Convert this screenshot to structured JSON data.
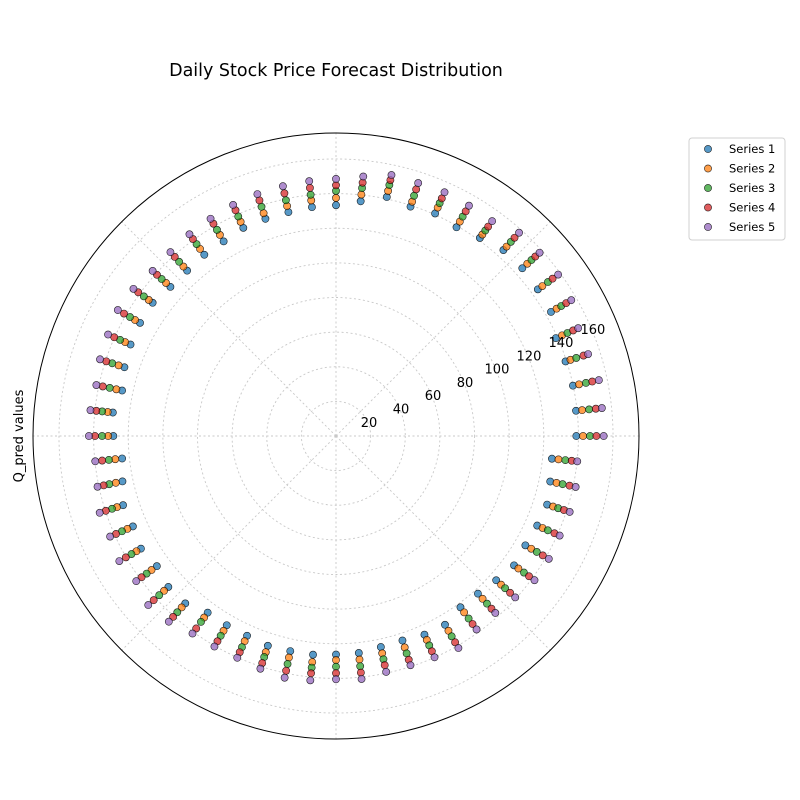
{
  "chart_data": {
    "type": "scatter",
    "projection": "polar",
    "title": "Daily Stock Price Forecast Distribution",
    "ylabel": "Q_pred values",
    "rlim": [
      0,
      175
    ],
    "r_ticks": [
      20,
      40,
      60,
      80,
      100,
      120,
      140,
      160
    ],
    "r_tick_angle_deg": 22.5,
    "theta_grid_deg": [
      0,
      45,
      90,
      135,
      180,
      225,
      270,
      315
    ],
    "theta_direction": "counterclockwise",
    "theta_zero": "east",
    "grid": true,
    "legend_position": "upper-right outside",
    "marker_alpha": 0.75,
    "theta_start_deg": 0,
    "theta_step_deg": 6,
    "point_count": 60,
    "series": [
      {
        "name": "Series 1",
        "color": "#1f77b4",
        "r": [
          138.8,
          139.4,
          139.9,
          139.4,
          139.0,
          143.4,
          144.1,
          144.8,
          144.5,
          141.4,
          139.2,
          140.7,
          139.3,
          141.1,
          136.3,
          133.3,
          132.9,
          132.2,
          131.9,
          131.6,
          129.8,
          129.4,
          128.5,
          128.7,
          130.9,
          130.7,
          129.9,
          128.5,
          126.3,
          129.6,
          128.6,
          124.2,
          126.1,
          129.3,
          128.4,
          130.1,
          127.9,
          130.3,
          130.1,
          126.1,
          126.2,
          126.3,
          127.4,
          127.0,
          127.0,
          126.2,
          126.0,
          124.6,
          124.2,
          125.6,
          125.9,
          122.3,
          122.5,
          124.5,
          127.1,
          126.3,
          127.2,
          128.2,
          126.5,
          125.4
        ]
      },
      {
        "name": "Series 2",
        "color": "#ff7f0e",
        "r": [
          142.7,
          142.9,
          143.5,
          142.4,
          142.9,
          147.1,
          147.3,
          148.7,
          147.2,
          143.8,
          143.0,
          144.4,
          142.3,
          144.7,
          140.2,
          137.5,
          136.8,
          135.8,
          135.3,
          135.4,
          134.1,
          133.6,
          131.7,
          132.1,
          133.7,
          134.0,
          133.3,
          132.0,
          129.7,
          132.6,
          131.6,
          128.2,
          130.0,
          133.0,
          131.9,
          133.1,
          131.7,
          133.6,
          133.2,
          129.6,
          129.9,
          129.7,
          131.3,
          130.8,
          131.3,
          129.4,
          129.8,
          128.3,
          128.4,
          128.9,
          129.9,
          125.9,
          126.5,
          128.3,
          130.2,
          130.2,
          130.6,
          131.8,
          130.2,
          129.2
        ]
      },
      {
        "name": "Series 3",
        "color": "#2ca02c",
        "r": [
          146.7,
          147.0,
          147.6,
          145.9,
          146.3,
          150.2,
          151.3,
          151.9,
          150.9,
          146.7,
          146.3,
          147.2,
          145.9,
          148.2,
          144.0,
          141.6,
          140.1,
          139.2,
          139.2,
          138.8,
          137.5,
          137.0,
          135.4,
          135.5,
          137.2,
          137.4,
          136.5,
          135.9,
          133.6,
          135.8,
          135.1,
          131.9,
          133.9,
          136.0,
          135.3,
          136.4,
          135.2,
          137.4,
          137.0,
          132.7,
          133.2,
          133.5,
          134.2,
          134.6,
          134.5,
          133.2,
          133.7,
          131.8,
          132.0,
          132.4,
          133.6,
          130.3,
          130.3,
          131.4,
          134.2,
          133.9,
          133.9,
          134.9,
          133.8,
          133.2
        ]
      },
      {
        "name": "Series 4",
        "color": "#d62728",
        "r": [
          150.4,
          150.9,
          151.3,
          150.3,
          149.9,
          153.5,
          154.6,
          154.9,
          154.1,
          149.5,
          149.8,
          150.2,
          149.8,
          151.1,
          147.1,
          144.8,
          144.1,
          143.3,
          143.1,
          142.7,
          141.6,
          140.6,
          139.2,
          139.2,
          141.2,
          141.4,
          140.2,
          139.5,
          137.7,
          139.2,
          139.2,
          135.8,
          137.2,
          139.8,
          139.1,
          140.2,
          138.8,
          141.7,
          140.6,
          137.4,
          136.9,
          136.7,
          137.9,
          138.6,
          137.8,
          137.0,
          137.4,
          135.3,
          135.9,
          136.1,
          137.6,
          134.2,
          134.2,
          135.3,
          137.8,
          137.9,
          138.1,
          138.4,
          137.9,
          136.9
        ]
      },
      {
        "name": "Series 5",
        "color": "#9467bd",
        "r": [
          154.6,
          154.4,
          155.2,
          153.1,
          153.1,
          156.9,
          158.6,
          158.2,
          158.0,
          153.4,
          153.6,
          154.1,
          153.6,
          154.1,
          150.7,
          148.5,
          148.0,
          147.5,
          146.9,
          146.1,
          144.9,
          144.0,
          142.9,
          142.5,
          144.6,
          145.5,
          144.1,
          143.3,
          141.5,
          142.6,
          142.7,
          139.8,
          140.8,
          143.5,
          142.8,
          144.5,
          142.6,
          145.9,
          144.3,
          141.0,
          140.4,
          140.2,
          141.3,
          142.7,
          141.9,
          140.5,
          141.1,
          139.3,
          139.2,
          139.9,
          141.4,
          138.1,
          137.5,
          139.3,
          141.7,
          141.9,
          141.4,
          141.9,
          141.5,
          140.1
        ]
      }
    ]
  }
}
